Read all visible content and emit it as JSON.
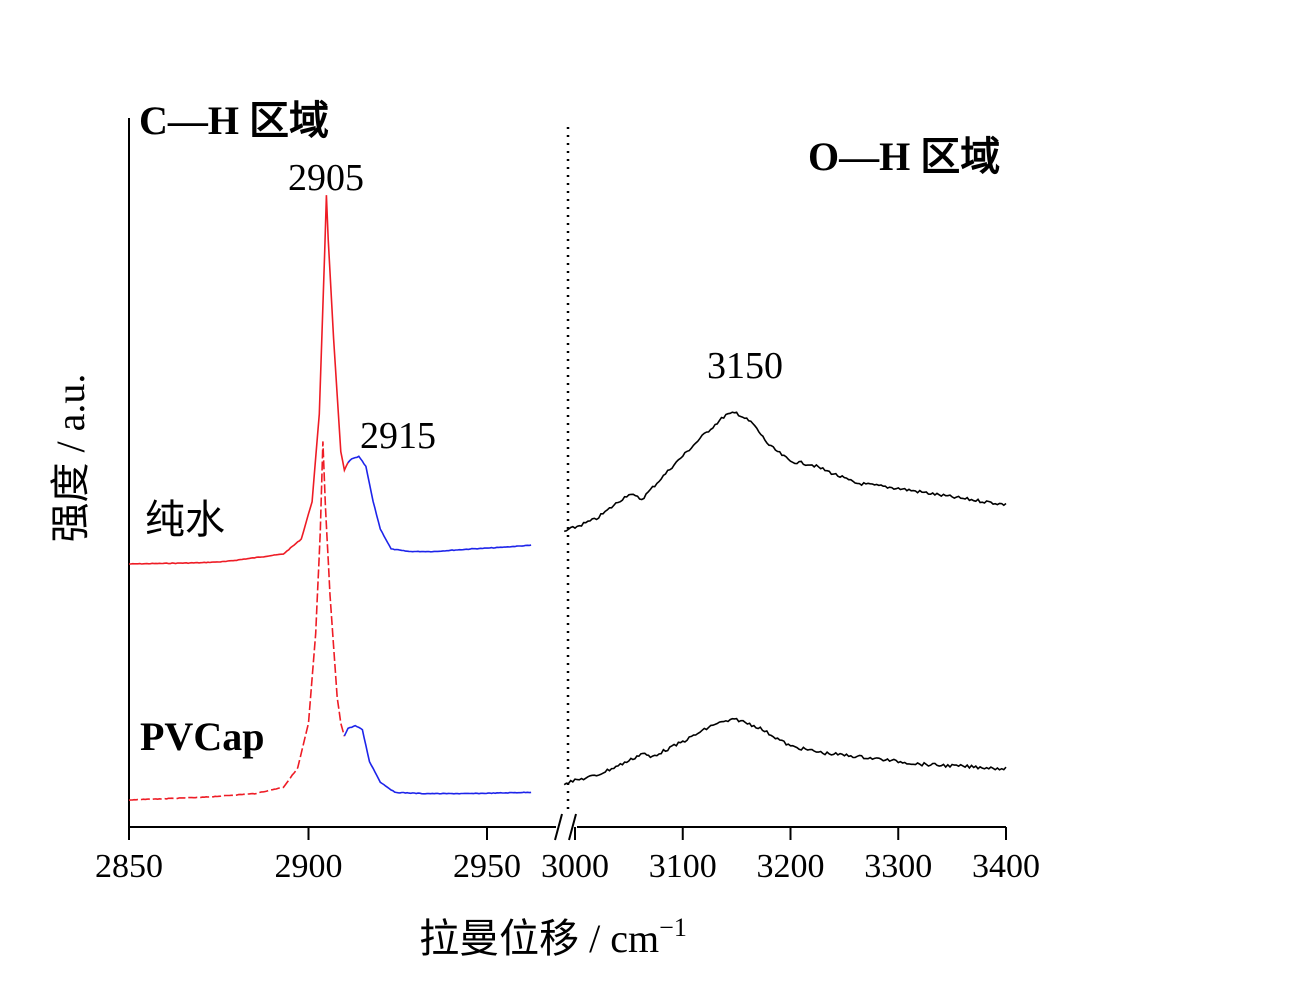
{
  "chart_data": {
    "type": "line",
    "title": "",
    "xlabel": "拉曼位移 / cm",
    "xlabel_sup": "−1",
    "ylabel": "强度 / a.u.",
    "x_break": "2950–3000",
    "panels": [
      {
        "name": "C—H 区域",
        "xlim": [
          2850,
          2965
        ],
        "ticks": [
          "2850",
          "2900",
          "2950"
        ],
        "tick_values": [
          2850,
          2900,
          2950
        ]
      },
      {
        "name": "O—H 区域",
        "xlim": [
          2990,
          3400
        ],
        "ticks": [
          "3000",
          "3100",
          "3200",
          "3300",
          "3400"
        ],
        "tick_values": [
          3000,
          3100,
          3200,
          3300,
          3400
        ]
      }
    ],
    "peak_labels": [
      "2905",
      "2915",
      "3150"
    ],
    "series": [
      {
        "name": "纯水",
        "offset_level": "upper",
        "ch_red": [
          [
            2850,
            0.0
          ],
          [
            2870,
            0.01
          ],
          [
            2877,
            0.02
          ],
          [
            2885,
            0.05
          ],
          [
            2893,
            0.08
          ],
          [
            2898,
            0.2
          ],
          [
            2901,
            0.5
          ],
          [
            2903,
            1.2
          ],
          [
            2904.5,
            2.5
          ],
          [
            2905,
            2.95
          ],
          [
            2905.5,
            2.6
          ],
          [
            2907,
            1.8
          ],
          [
            2909,
            0.9
          ],
          [
            2910,
            0.75
          ],
          [
            2911,
            0.81
          ]
        ],
        "ch_blue": [
          [
            2911,
            0.81
          ],
          [
            2912,
            0.84
          ],
          [
            2914,
            0.86
          ],
          [
            2916,
            0.78
          ],
          [
            2918,
            0.5
          ],
          [
            2920,
            0.28
          ],
          [
            2923,
            0.12
          ],
          [
            2928,
            0.1
          ],
          [
            2935,
            0.1
          ],
          [
            2945,
            0.12
          ],
          [
            2952,
            0.13
          ],
          [
            2962,
            0.15
          ]
        ],
        "oh_black": [
          [
            2990,
            0.3
          ],
          [
            3020,
            0.42
          ],
          [
            3050,
            0.65
          ],
          [
            3062,
            0.6
          ],
          [
            3090,
            0.9
          ],
          [
            3120,
            1.2
          ],
          [
            3140,
            1.38
          ],
          [
            3150,
            1.4
          ],
          [
            3165,
            1.3
          ],
          [
            3180,
            1.1
          ],
          [
            3200,
            0.95
          ],
          [
            3220,
            0.92
          ],
          [
            3260,
            0.75
          ],
          [
            3300,
            0.7
          ],
          [
            3350,
            0.62
          ],
          [
            3400,
            0.55
          ]
        ]
      },
      {
        "name": "PVCap",
        "offset_level": "lower",
        "ch_red": [
          [
            2850,
            0.0
          ],
          [
            2870,
            0.02
          ],
          [
            2885,
            0.05
          ],
          [
            2893,
            0.1
          ],
          [
            2897,
            0.25
          ],
          [
            2900,
            0.6
          ],
          [
            2902,
            1.3
          ],
          [
            2903.3,
            2.1
          ],
          [
            2904,
            2.8
          ],
          [
            2904.7,
            2.3
          ],
          [
            2906,
            1.6
          ],
          [
            2908,
            0.8
          ],
          [
            2909,
            0.6
          ],
          [
            2910,
            0.5
          ]
        ],
        "ch_blue": [
          [
            2910,
            0.5
          ],
          [
            2911,
            0.56
          ],
          [
            2913,
            0.58
          ],
          [
            2915,
            0.55
          ],
          [
            2917,
            0.3
          ],
          [
            2920,
            0.14
          ],
          [
            2924,
            0.06
          ],
          [
            2932,
            0.05
          ],
          [
            2945,
            0.05
          ],
          [
            2962,
            0.06
          ]
        ],
        "oh_black": [
          [
            2990,
            0.15
          ],
          [
            3020,
            0.22
          ],
          [
            3050,
            0.35
          ],
          [
            3063,
            0.42
          ],
          [
            3070,
            0.38
          ],
          [
            3100,
            0.52
          ],
          [
            3130,
            0.68
          ],
          [
            3150,
            0.72
          ],
          [
            3170,
            0.65
          ],
          [
            3200,
            0.48
          ],
          [
            3230,
            0.42
          ],
          [
            3270,
            0.38
          ],
          [
            3320,
            0.32
          ],
          [
            3400,
            0.28
          ]
        ]
      }
    ],
    "colors": {
      "ch_red": "#ee1c25",
      "ch_blue": "#1d24ea",
      "oh_black": "#000000",
      "axis": "#000000"
    }
  }
}
